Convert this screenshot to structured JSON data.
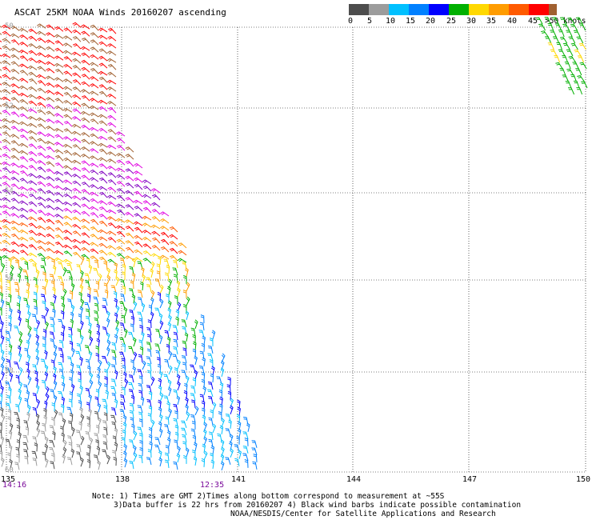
{
  "title": "ASCAT 25KM NOAA Winds 20160207 ascending",
  "legend": {
    "colors": [
      "#4d4d4d",
      "#9c9c9c",
      "#00c0ff",
      "#0080ff",
      "#0000ff",
      "#00b000",
      "#ffd800",
      "#ff9c00",
      "#ff5a00",
      "#ff0000",
      "#a06030",
      "#e000e0",
      "#8000c0"
    ],
    "labels": [
      "0",
      "5",
      "10",
      "15",
      "20",
      "25",
      "30",
      "35",
      "40",
      "45",
      ">50 knots"
    ]
  },
  "grid": {
    "lat_labels": [
      "50",
      "52",
      "54",
      "56",
      "58",
      "60"
    ],
    "lon_labels": [
      "135",
      "138",
      "141",
      "144",
      "147",
      "150"
    ]
  },
  "times": [
    "14:16",
    "12:35"
  ],
  "notes": [
    "Note: 1) Times are GMT 2)Times along bottom correspond to measurement at ~55S",
    "3)Data buffer is 22 hrs from 20160207 4) Black wind barbs indicate possible contamination",
    "NOAA/NESDIS/Center for Satellite Applications and Research"
  ]
}
